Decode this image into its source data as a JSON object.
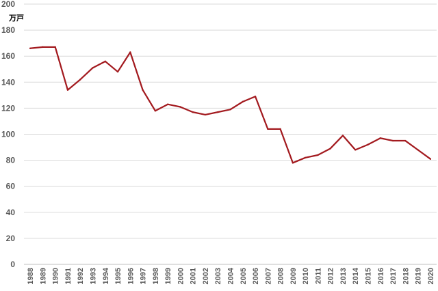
{
  "chart_data": {
    "type": "line",
    "title": "",
    "xlabel": "",
    "ylabel": "万戸",
    "ylim": [
      0,
      200
    ],
    "yticks": [
      0,
      20,
      40,
      60,
      80,
      100,
      120,
      140,
      160,
      180,
      200
    ],
    "grid": true,
    "legend": "none",
    "colors": {
      "line": "#a31a1f",
      "grid": "#d9d9d9",
      "axis": "#bfbfbf",
      "text": "#595959"
    },
    "categories": [
      "1988",
      "1989",
      "1990",
      "1991",
      "1992",
      "1993",
      "1994",
      "1995",
      "1996",
      "1997",
      "1998",
      "1999",
      "2000",
      "2001",
      "2002",
      "2003",
      "2004",
      "2005",
      "2006",
      "2007",
      "2008",
      "2009",
      "2010",
      "2011",
      "2012",
      "2013",
      "2014",
      "2015",
      "2016",
      "2017",
      "2018",
      "2019",
      "2020"
    ],
    "series": [
      {
        "values": [
          166,
          167,
          167,
          134,
          142,
          151,
          156,
          148,
          163,
          134,
          118,
          123,
          121,
          117,
          115,
          117,
          119,
          125,
          129,
          104,
          104,
          78,
          82,
          84,
          89,
          99,
          88,
          92,
          97,
          95,
          95,
          88,
          81
        ]
      }
    ]
  }
}
